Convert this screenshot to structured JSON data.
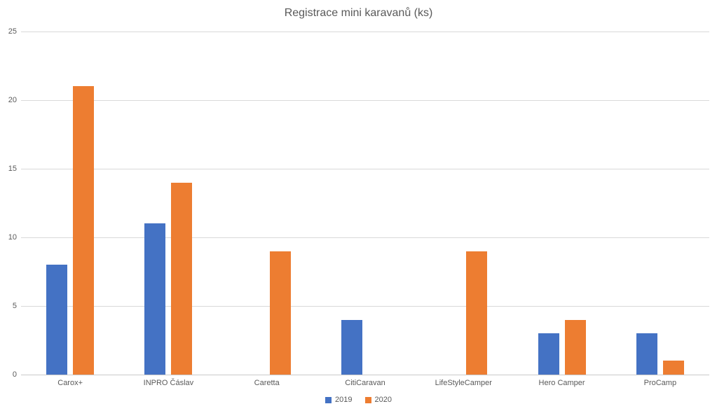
{
  "chart_data": {
    "type": "bar",
    "title": "Registrace mini karavanů (ks)",
    "categories": [
      "Carox+",
      "INPRO Čáslav",
      "Caretta",
      "CitiCaravan",
      "LifeStyleCamper",
      "Hero Camper",
      "ProCamp"
    ],
    "series": [
      {
        "name": "2019",
        "color": "#4472C4",
        "values": [
          8,
          11,
          0,
          4,
          0,
          3,
          3
        ]
      },
      {
        "name": "2020",
        "color": "#ED7D31",
        "values": [
          21,
          14,
          9,
          0,
          9,
          4,
          1
        ]
      }
    ],
    "xlabel": "",
    "ylabel": "",
    "ylim": [
      0,
      25
    ],
    "yticks": [
      0,
      5,
      10,
      15,
      20,
      25
    ],
    "grid": true,
    "legend_position": "bottom"
  }
}
